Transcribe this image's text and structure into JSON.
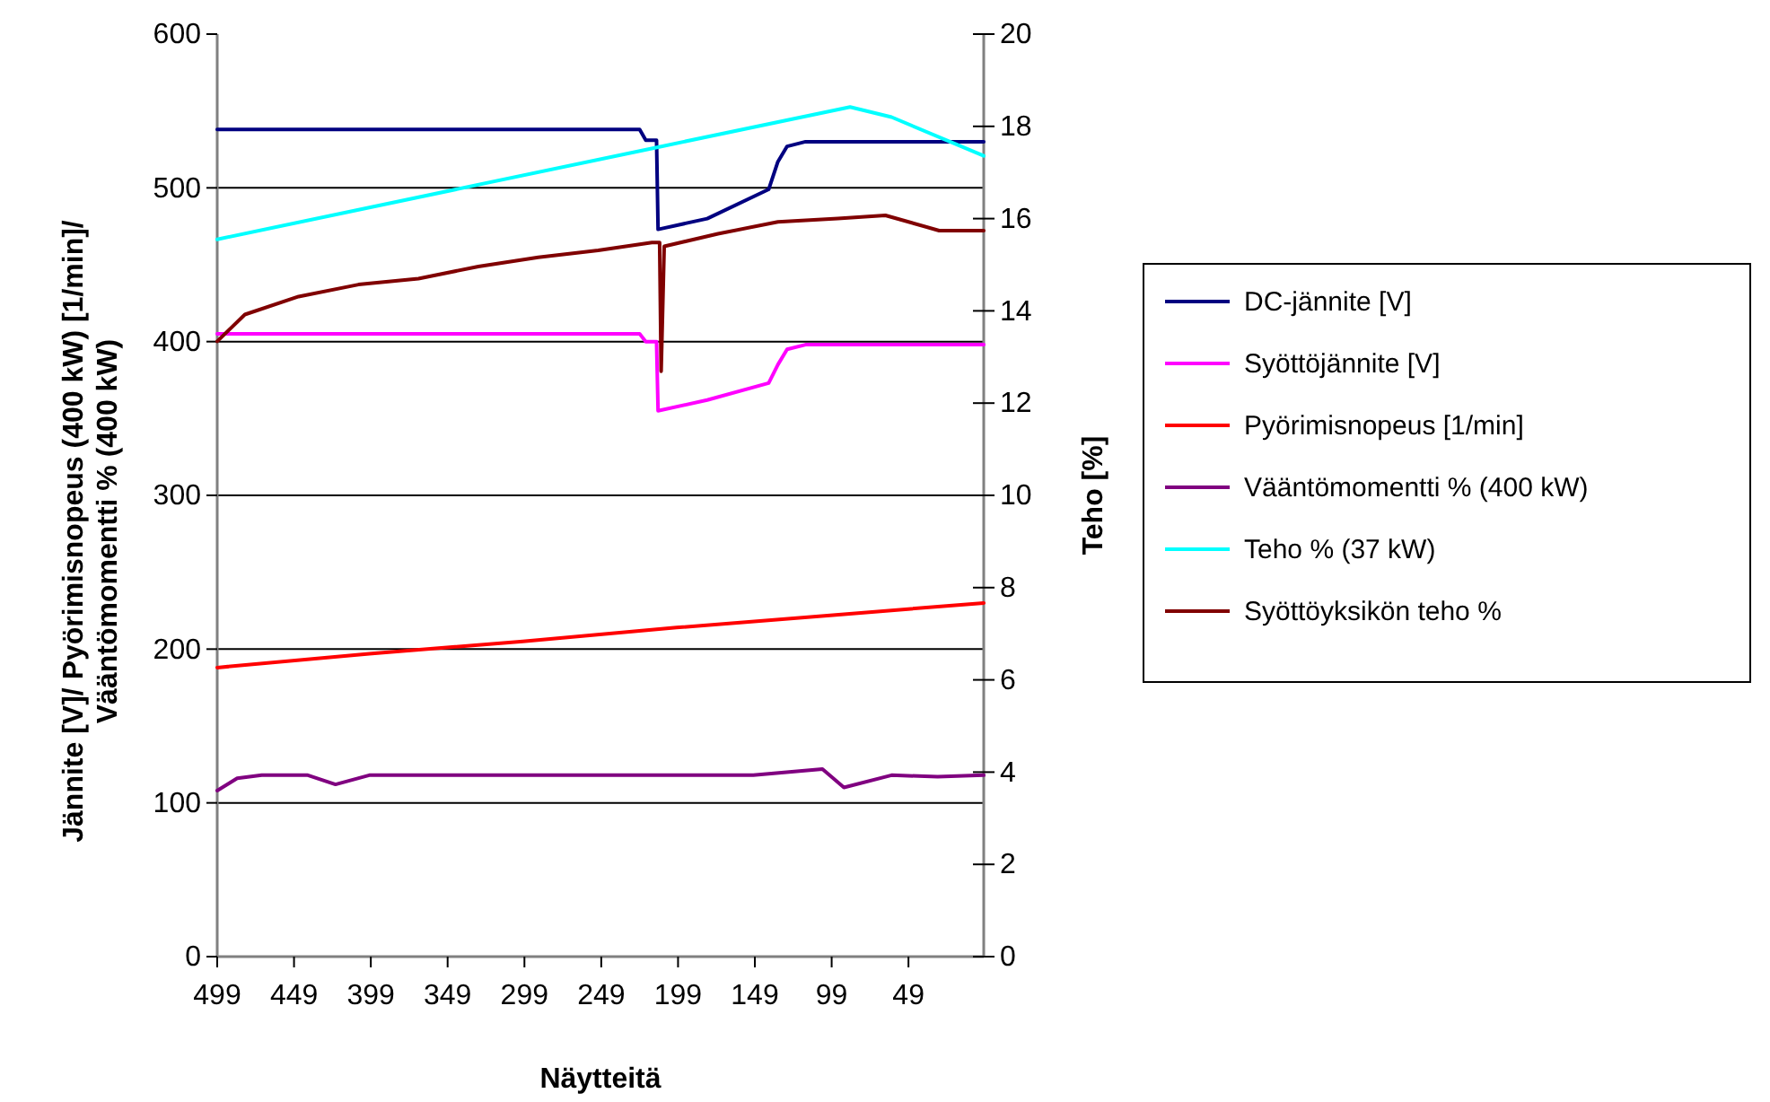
{
  "chart_data": {
    "type": "line",
    "xlabel": "Näytteitä",
    "ylabel": "Jännite [V]/ Pyörimisnopeus (400 kW) [1/min]/ Vääntömomentti % (400 kW)",
    "y2label": "Teho [%]",
    "xlim": [
      499,
      0
    ],
    "xticks": [
      499,
      449,
      399,
      349,
      299,
      249,
      199,
      149,
      99,
      49
    ],
    "ylim": [
      0,
      600
    ],
    "yticks": [
      0,
      100,
      200,
      300,
      400,
      500,
      600
    ],
    "y2lim": [
      0,
      20
    ],
    "y2ticks": [
      0,
      2,
      4,
      6,
      8,
      10,
      12,
      14,
      16,
      18,
      20
    ],
    "grid": "y",
    "legend": "right",
    "marker": "none",
    "line_style": "solid",
    "series": [
      {
        "name": "DC-jännite [V]",
        "color": "#000080",
        "x": [
          499,
          224,
          220,
          213,
          212,
          180,
          140,
          134,
          128,
          116,
          0
        ],
        "values": [
          538,
          538,
          531,
          531,
          473,
          480,
          499,
          517,
          527,
          530,
          530
        ]
      },
      {
        "name": "Syöttöjännite [V]",
        "color": "#ff00ff",
        "x": [
          499,
          224,
          220,
          213,
          212,
          180,
          140,
          134,
          128,
          116,
          0
        ],
        "values": [
          405,
          405,
          400,
          400,
          355,
          362,
          373,
          385,
          395,
          398,
          398
        ]
      },
      {
        "name": "Pyörimisnopeus [1/min]",
        "color": "#ff0000",
        "x": [
          499,
          400,
          300,
          200,
          100,
          0
        ],
        "values": [
          188,
          197,
          205,
          214,
          222,
          230
        ]
      },
      {
        "name": "Vääntömomentti % (400 kW)",
        "color": "#800080",
        "x": [
          499,
          486,
          470,
          440,
          422,
          400,
          350,
          300,
          250,
          200,
          150,
          105,
          91,
          60,
          30,
          0
        ],
        "values": [
          108,
          116,
          118,
          118,
          112,
          118,
          118,
          118,
          118,
          118,
          118,
          122,
          110,
          118,
          117,
          118
        ]
      },
      {
        "name": "Teho % (37 kW)",
        "color": "#00ffff",
        "axis": "y2",
        "x": [
          499,
          212,
          87,
          60,
          0
        ],
        "values": [
          15.55,
          17.55,
          18.42,
          18.2,
          17.36
        ]
      },
      {
        "name": "Syöttöyksikön teho %",
        "color": "#800000",
        "axis": "y2",
        "x": [
          499,
          481,
          446,
          407,
          368,
          329,
          290,
          251,
          216,
          211,
          210,
          208,
          173,
          134,
          95,
          64,
          29,
          0
        ],
        "values": [
          13.34,
          13.92,
          14.31,
          14.57,
          14.7,
          14.96,
          15.16,
          15.31,
          15.48,
          15.48,
          12.69,
          15.4,
          15.67,
          15.93,
          16.0,
          16.07,
          15.74,
          15.74
        ]
      }
    ]
  }
}
